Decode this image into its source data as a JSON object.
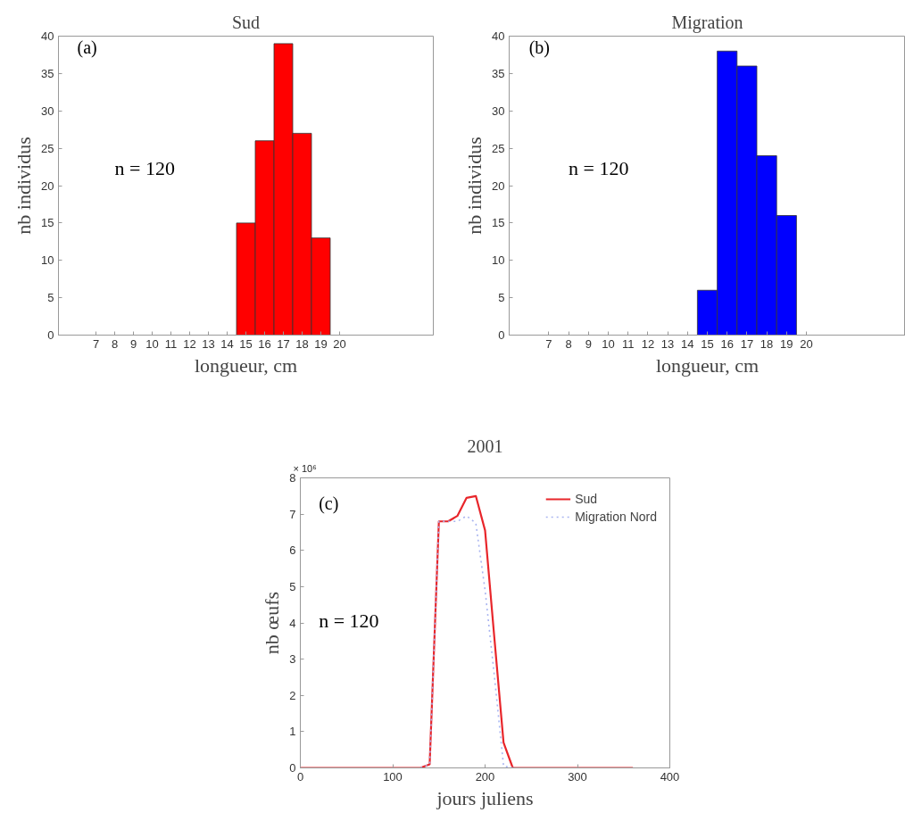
{
  "chart_data": [
    {
      "type": "histogram",
      "title": "Sud",
      "xlabel": "longueur, cm",
      "ylabel": "nb individus",
      "bins": [
        14.5,
        15.5,
        16.5,
        17.5,
        18.5,
        19.5
      ],
      "values": [
        15,
        26,
        39,
        27,
        13
      ],
      "color": "#ff0000",
      "xlim": [
        5,
        25
      ],
      "xticks": [
        7,
        8,
        9,
        10,
        11,
        12,
        13,
        14,
        15,
        16,
        17,
        18,
        19,
        20
      ],
      "ylim": [
        0,
        40
      ],
      "yticks": [
        0,
        5,
        10,
        15,
        20,
        25,
        30,
        35,
        40
      ],
      "grid": false,
      "annotations": [
        "(a)",
        "n = 120"
      ]
    },
    {
      "type": "histogram",
      "title": "Migration",
      "xlabel": "longueur, cm",
      "ylabel": "nb individus",
      "bins": [
        14.5,
        15.5,
        16.5,
        17.5,
        18.5,
        19.5
      ],
      "values": [
        6,
        38,
        36,
        24,
        16
      ],
      "color": "#0000ff",
      "xlim": [
        5,
        25
      ],
      "xticks": [
        7,
        8,
        9,
        10,
        11,
        12,
        13,
        14,
        15,
        16,
        17,
        18,
        19,
        20
      ],
      "ylim": [
        0,
        40
      ],
      "yticks": [
        0,
        5,
        10,
        15,
        20,
        25,
        30,
        35,
        40
      ],
      "grid": false,
      "annotations": [
        "(b)",
        "n = 120"
      ]
    },
    {
      "type": "line",
      "title": "2001",
      "xlabel": "jours juliens",
      "ylabel": "nb œufs",
      "x": [
        0,
        10,
        20,
        30,
        40,
        50,
        60,
        70,
        80,
        90,
        100,
        110,
        120,
        130,
        140,
        150,
        160,
        170,
        180,
        190,
        200,
        210,
        220,
        230,
        240,
        250,
        260,
        270,
        280,
        290,
        300,
        310,
        320,
        330,
        340,
        350,
        360
      ],
      "series": [
        {
          "name": "Sud",
          "color": "#e8262b",
          "line_style": "solid",
          "values": [
            0,
            0,
            0,
            0,
            0,
            0,
            0,
            0,
            0,
            0,
            0,
            0,
            0,
            0,
            0.1,
            6.8,
            6.8,
            6.95,
            7.45,
            7.5,
            6.55,
            3.6,
            0.7,
            0,
            0,
            0,
            0,
            0,
            0,
            0,
            0,
            0,
            0,
            0,
            0,
            0,
            0
          ]
        },
        {
          "name": "Migration Nord",
          "color": "#a8b4f0",
          "line_style": "dotted",
          "values": [
            null,
            null,
            null,
            null,
            null,
            null,
            null,
            null,
            null,
            null,
            null,
            null,
            null,
            0,
            0.1,
            6.8,
            6.8,
            6.8,
            6.95,
            6.75,
            4.9,
            2.55,
            0.05,
            0,
            null,
            null,
            null,
            null,
            null,
            null,
            null,
            null,
            null,
            null,
            null,
            null,
            null
          ]
        }
      ],
      "xlim": [
        0,
        400
      ],
      "xticks": [
        0,
        100,
        200,
        300,
        400
      ],
      "ylim": [
        0,
        8
      ],
      "yticks": [
        0,
        1,
        2,
        3,
        4,
        5,
        6,
        7,
        8
      ],
      "grid": false,
      "legend": "top right",
      "marker": "none",
      "annotations": [
        "(c)",
        "n = 120",
        "× 10⁶"
      ]
    }
  ]
}
